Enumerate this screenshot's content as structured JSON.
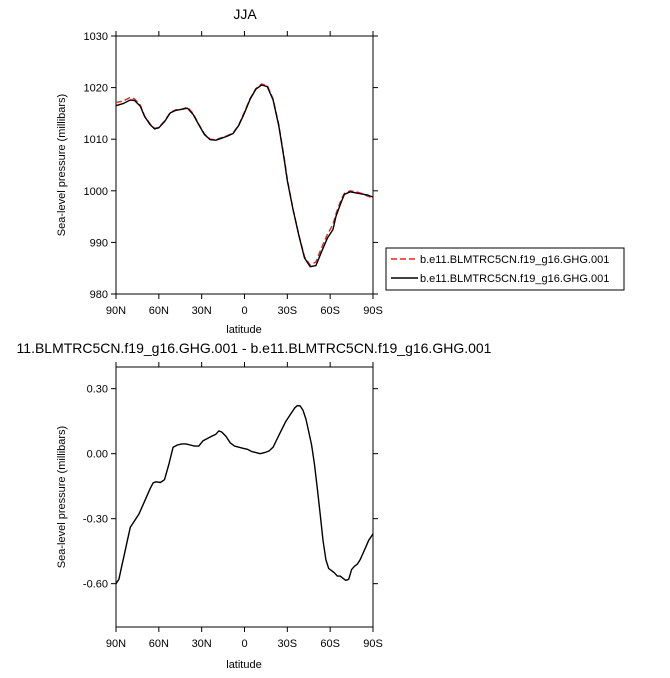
{
  "chart_data": [
    {
      "type": "line",
      "title": "JJA",
      "xlabel": "latitude",
      "ylabel": "Sea-level pressure (millibars)",
      "xlim": [
        90,
        -90
      ],
      "ylim": [
        980,
        1030
      ],
      "x_tick_values": [
        90,
        60,
        30,
        0,
        -30,
        -60,
        -90
      ],
      "x_tick_labels": [
        "90N",
        "60N",
        "30N",
        "0",
        "30S",
        "60S",
        "90S"
      ],
      "y_tick_values": [
        980,
        990,
        1000,
        1010,
        1020,
        1030
      ],
      "y_tick_labels": [
        "980",
        "990",
        "1000",
        "1010",
        "1020",
        "1030"
      ],
      "legend_position": "right",
      "series": [
        {
          "name": "b.e11.BLMTRC5CN.f19_g16.GHG.001",
          "color": "#e8231f",
          "dash": "dashed",
          "x": [
            90,
            85,
            80,
            77,
            73,
            70,
            66,
            63,
            60,
            56,
            52,
            48,
            44,
            40,
            36,
            32,
            28,
            24,
            20,
            16,
            12,
            8,
            4,
            0,
            -4,
            -8,
            -12,
            -16,
            -20,
            -24,
            -28,
            -30,
            -34,
            -38,
            -42,
            -46,
            -50,
            -54,
            -58,
            -62,
            -64,
            -66,
            -68,
            -70,
            -74,
            -78,
            -82,
            -86,
            -88,
            -90
          ],
          "y": [
            1017.1,
            1017.4,
            1018.1,
            1017.8,
            1016.6,
            1014.5,
            1012.9,
            1012.1,
            1012.3,
            1013.5,
            1015.2,
            1015.7,
            1015.8,
            1016.2,
            1015.0,
            1012.9,
            1011.0,
            1010.0,
            1009.9,
            1010.3,
            1010.7,
            1011.2,
            1012.8,
            1015.3,
            1017.9,
            1019.8,
            1020.7,
            1020.4,
            1017.8,
            1012.8,
            1006.0,
            1002.2,
            996.5,
            991.5,
            987.2,
            985.6,
            986.2,
            989.0,
            991.5,
            993.5,
            995.5,
            997.0,
            998.5,
            999.5,
            1000.0,
            999.8,
            999.5,
            999.0,
            998.8,
            998.6
          ]
        },
        {
          "name": "b.e11.BLMTRC5CN.f19_g16.GHG.001",
          "color": "#000000",
          "dash": "solid",
          "x": [
            90,
            85,
            80,
            77,
            73,
            70,
            66,
            63,
            60,
            56,
            52,
            48,
            44,
            40,
            36,
            32,
            28,
            24,
            20,
            16,
            12,
            8,
            4,
            0,
            -4,
            -8,
            -12,
            -16,
            -20,
            -24,
            -28,
            -30,
            -34,
            -38,
            -42,
            -46,
            -50,
            -54,
            -58,
            -62,
            -64,
            -66,
            -68,
            -70,
            -74,
            -78,
            -82,
            -86,
            -88,
            -90
          ],
          "y": [
            1016.5,
            1016.9,
            1017.6,
            1017.5,
            1016.4,
            1014.4,
            1012.8,
            1012.0,
            1012.2,
            1013.4,
            1015.1,
            1015.6,
            1015.8,
            1016.0,
            1014.8,
            1012.8,
            1010.9,
            1009.9,
            1009.8,
            1010.2,
            1010.6,
            1011.1,
            1012.7,
            1015.1,
            1017.8,
            1019.7,
            1020.5,
            1020.2,
            1017.6,
            1012.6,
            1005.7,
            1002.0,
            996.4,
            991.4,
            987.0,
            985.3,
            985.5,
            988.2,
            990.8,
            992.5,
            995.0,
            996.5,
            998.0,
            999.3,
            999.8,
            999.6,
            999.4,
            999.2,
            999.0,
            998.8
          ]
        }
      ]
    },
    {
      "type": "line",
      "title": "11.BLMTRC5CN.f19_g16.GHG.001 - b.e11.BLMTRC5CN.f19_g16.GHG.001",
      "xlabel": "latitude",
      "ylabel": "Sea-level pressure (millibars)",
      "xlim": [
        90,
        -90
      ],
      "ylim": [
        -0.8,
        0.4
      ],
      "x_tick_values": [
        90,
        60,
        30,
        0,
        -30,
        -60,
        -90
      ],
      "x_tick_labels": [
        "90N",
        "60N",
        "30N",
        "0",
        "30S",
        "60S",
        "90S"
      ],
      "y_tick_values": [
        0.3,
        0.0,
        -0.3,
        -0.6
      ],
      "y_tick_labels": [
        "0.30",
        "0.00",
        "-0.30",
        "-0.60"
      ],
      "series": [
        {
          "name": "",
          "color": "#000000",
          "dash": "solid",
          "x": [
            90,
            88,
            86,
            84,
            82,
            80,
            77,
            74,
            70,
            68,
            66,
            64,
            62,
            59,
            56,
            53,
            50,
            47,
            44,
            41,
            38,
            35,
            32,
            29,
            26,
            23,
            20,
            18,
            16,
            13,
            10,
            7,
            4,
            1,
            -2,
            -5,
            -8,
            -11,
            -14,
            -17,
            -20,
            -23,
            -26,
            -29,
            -32,
            -35,
            -37,
            -39,
            -41,
            -43,
            -45,
            -47,
            -49,
            -51,
            -53,
            -55,
            -57,
            -59,
            -61,
            -63,
            -65,
            -67,
            -69,
            -71,
            -73,
            -75,
            -77,
            -79,
            -81,
            -83,
            -85,
            -87,
            -89,
            -90
          ],
          "y": [
            -0.6,
            -0.58,
            -0.52,
            -0.46,
            -0.4,
            -0.34,
            -0.31,
            -0.28,
            -0.22,
            -0.19,
            -0.16,
            -0.135,
            -0.13,
            -0.133,
            -0.12,
            -0.05,
            0.03,
            0.04,
            0.045,
            0.045,
            0.04,
            0.035,
            0.035,
            0.06,
            0.07,
            0.08,
            0.09,
            0.105,
            0.1,
            0.08,
            0.05,
            0.035,
            0.03,
            0.025,
            0.02,
            0.01,
            0.005,
            0.0,
            0.005,
            0.012,
            0.03,
            0.07,
            0.11,
            0.15,
            0.18,
            0.21,
            0.222,
            0.22,
            0.2,
            0.16,
            0.1,
            0.04,
            -0.05,
            -0.16,
            -0.28,
            -0.4,
            -0.49,
            -0.53,
            -0.54,
            -0.55,
            -0.565,
            -0.565,
            -0.575,
            -0.585,
            -0.58,
            -0.535,
            -0.52,
            -0.51,
            -0.49,
            -0.46,
            -0.43,
            -0.4,
            -0.38,
            -0.37
          ]
        }
      ]
    }
  ]
}
